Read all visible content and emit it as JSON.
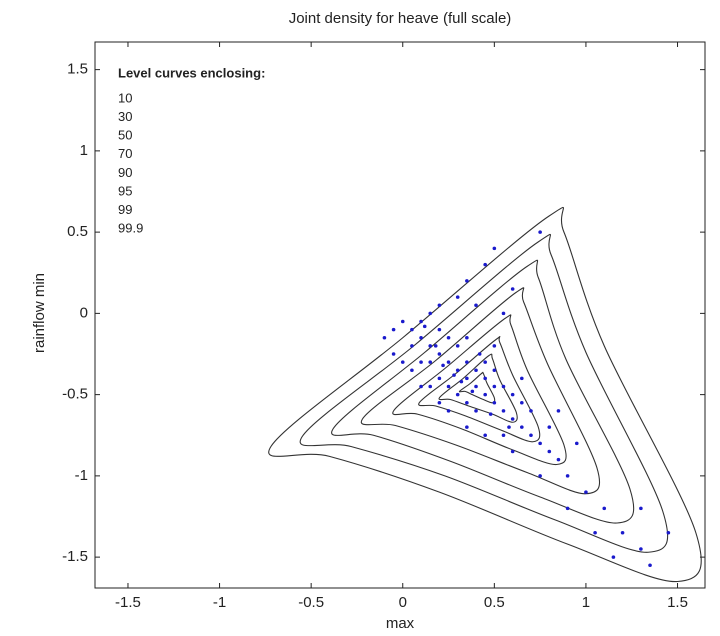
{
  "chart_data": {
    "type": "contour-scatter",
    "title": "Joint density for heave (full scale)",
    "x_label": "max",
    "y_label": "rainflow min",
    "xlim": [
      -1.68,
      1.65
    ],
    "ylim": [
      -1.69,
      1.67
    ],
    "xticks": [
      -1.5,
      -1,
      -0.5,
      0,
      0.5,
      1,
      1.5
    ],
    "yticks": [
      -1.5,
      -1,
      -0.5,
      0,
      0.5,
      1,
      1.5
    ],
    "legend_title": "Level curves enclosing:",
    "levels": [
      10,
      30,
      50,
      70,
      90,
      95,
      99,
      99.9
    ],
    "contour_color": "#333333",
    "contours": [
      {
        "x": [
          0.31,
          0.37,
          0.43,
          0.44,
          0.46,
          0.5,
          0.49,
          0.44,
          0.38,
          0.34
        ],
        "y": [
          -0.48,
          -0.43,
          -0.37,
          -0.37,
          -0.43,
          -0.52,
          -0.55,
          -0.53,
          -0.5,
          -0.48
        ]
      },
      {
        "x": [
          0.2,
          0.33,
          0.47,
          0.49,
          0.53,
          0.62,
          0.6,
          0.49,
          0.36,
          0.26
        ],
        "y": [
          -0.52,
          -0.4,
          -0.26,
          -0.28,
          -0.41,
          -0.61,
          -0.67,
          -0.62,
          -0.57,
          -0.53
        ]
      },
      {
        "x": [
          0.09,
          0.29,
          0.51,
          0.53,
          0.6,
          0.74,
          0.71,
          0.54,
          0.34,
          0.18
        ],
        "y": [
          -0.55,
          -0.37,
          -0.16,
          -0.18,
          -0.38,
          -0.7,
          -0.79,
          -0.72,
          -0.63,
          -0.57
        ]
      },
      {
        "x": [
          -0.05,
          0.24,
          0.56,
          0.59,
          0.68,
          0.88,
          0.84,
          0.6,
          0.32,
          0.08
        ],
        "y": [
          -0.6,
          -0.33,
          -0.03,
          -0.07,
          -0.35,
          -0.81,
          -0.93,
          -0.84,
          -0.71,
          -0.62
        ]
      },
      {
        "x": [
          -0.22,
          0.18,
          0.62,
          0.66,
          0.79,
          1.06,
          1.0,
          0.68,
          0.29,
          -0.04
        ],
        "y": [
          -0.65,
          -0.29,
          0.13,
          0.07,
          -0.31,
          -0.95,
          -1.11,
          -0.98,
          -0.81,
          -0.69
        ]
      },
      {
        "x": [
          -0.38,
          0.12,
          0.68,
          0.74,
          0.89,
          1.24,
          1.17,
          0.75,
          0.26,
          -0.16
        ],
        "y": [
          -0.71,
          -0.24,
          0.29,
          0.22,
          -0.28,
          -1.08,
          -1.29,
          -1.13,
          -0.91,
          -0.75
        ]
      },
      {
        "x": [
          -0.55,
          0.06,
          0.74,
          0.81,
          1.0,
          1.42,
          1.34,
          0.83,
          0.23,
          -0.28
        ],
        "y": [
          -0.76,
          -0.2,
          0.44,
          0.36,
          -0.24,
          -1.22,
          -1.47,
          -1.27,
          -1.0,
          -0.82
        ]
      },
      {
        "x": [
          -0.72,
          0.0,
          0.8,
          0.88,
          1.1,
          1.6,
          1.5,
          0.9,
          0.2,
          -0.4
        ],
        "y": [
          -0.82,
          -0.15,
          0.6,
          0.5,
          -0.2,
          -1.35,
          -1.65,
          -1.42,
          -1.1,
          -0.88
        ]
      }
    ],
    "points": {
      "color": "#1a1acc",
      "x": [
        0.0,
        0.05,
        0.1,
        0.1,
        0.15,
        0.2,
        0.2,
        0.25,
        0.25,
        0.3,
        0.3,
        0.35,
        0.35,
        0.4,
        0.4,
        0.45,
        0.45,
        0.5,
        0.5,
        0.55,
        0.6,
        0.6,
        0.65,
        0.7,
        0.75,
        0.8,
        0.85,
        0.9,
        1.0,
        1.1,
        1.2,
        1.3,
        1.35,
        0.15,
        0.2,
        0.1,
        0.05,
        -0.05,
        -0.1,
        0.3,
        0.35,
        0.25,
        0.4,
        0.45,
        0.5,
        0.55,
        0.3,
        0.35,
        0.45,
        0.5,
        0.6,
        0.75,
        0.4,
        0.55,
        0.2,
        0.15,
        0.5,
        0.65,
        0.7,
        0.8,
        0.85,
        0.95,
        0.6,
        0.75,
        0.9,
        1.05,
        1.15,
        1.45,
        1.3,
        0.2,
        0.1,
        0.05,
        -0.05,
        0.0,
        0.15,
        0.25,
        0.35,
        0.45,
        0.55,
        0.65,
        0.35,
        0.28,
        0.38,
        0.42,
        0.18,
        0.12,
        0.22,
        0.32,
        0.48,
        0.58
      ],
      "y": [
        -0.05,
        -0.1,
        -0.05,
        -0.15,
        -0.2,
        -0.1,
        -0.25,
        -0.3,
        -0.15,
        -0.35,
        -0.2,
        -0.4,
        -0.3,
        -0.45,
        -0.35,
        -0.5,
        -0.4,
        -0.55,
        -0.45,
        -0.6,
        -0.65,
        -0.5,
        -0.7,
        -0.75,
        -0.8,
        -0.85,
        -0.9,
        -1.0,
        -1.1,
        -1.2,
        -1.35,
        -1.45,
        -1.55,
        -0.3,
        -0.4,
        -0.3,
        -0.2,
        -0.1,
        -0.15,
        -0.5,
        -0.55,
        -0.45,
        -0.6,
        -0.3,
        -0.35,
        -0.45,
        0.1,
        0.2,
        0.3,
        0.4,
        0.15,
        0.5,
        0.05,
        0.0,
        0.05,
        0.0,
        -0.2,
        -0.4,
        -0.6,
        -0.7,
        -0.6,
        -0.8,
        -0.85,
        -1.0,
        -1.2,
        -1.35,
        -1.5,
        -1.35,
        -1.2,
        -0.55,
        -0.45,
        -0.35,
        -0.25,
        -0.3,
        -0.45,
        -0.6,
        -0.7,
        -0.75,
        -0.75,
        -0.55,
        -0.15,
        -0.38,
        -0.48,
        -0.25,
        -0.2,
        -0.08,
        -0.32,
        -0.42,
        -0.62,
        -0.7
      ]
    }
  }
}
